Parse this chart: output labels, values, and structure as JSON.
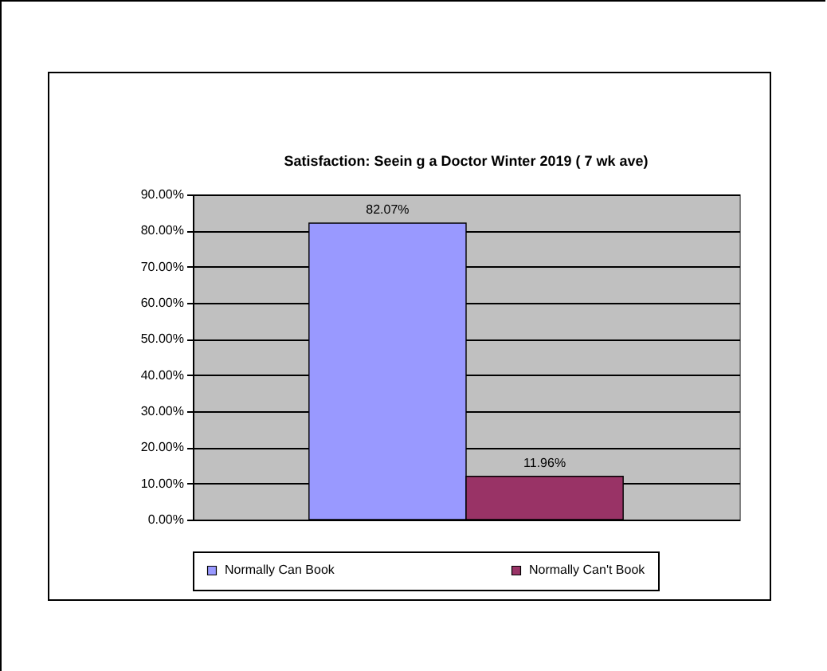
{
  "chart_data": {
    "type": "bar",
    "title": "Satisfaction: Seein g a Doctor Winter 2019 ( 7 wk ave)",
    "categories": [
      null
    ],
    "series": [
      {
        "name": "Normally Can Book",
        "color": "#9999ff",
        "values": [
          82.07
        ],
        "value_labels": [
          "82.07%"
        ]
      },
      {
        "name": "Normally Can't Book",
        "color": "#993366",
        "values": [
          11.96
        ],
        "value_labels": [
          "11.96%"
        ]
      }
    ],
    "ylim": [
      0,
      90
    ],
    "yticks": [
      {
        "value": 0,
        "label": "0.00%"
      },
      {
        "value": 10,
        "label": "10.00%"
      },
      {
        "value": 20,
        "label": "20.00%"
      },
      {
        "value": 30,
        "label": "30.00%"
      },
      {
        "value": 40,
        "label": "40.00%"
      },
      {
        "value": 50,
        "label": "50.00%"
      },
      {
        "value": 60,
        "label": "60.00%"
      },
      {
        "value": 70,
        "label": "70.00%"
      },
      {
        "value": 80,
        "label": "80.00%"
      },
      {
        "value": 90,
        "label": "90.00%"
      }
    ],
    "grid": "y",
    "legend": "bottom"
  }
}
